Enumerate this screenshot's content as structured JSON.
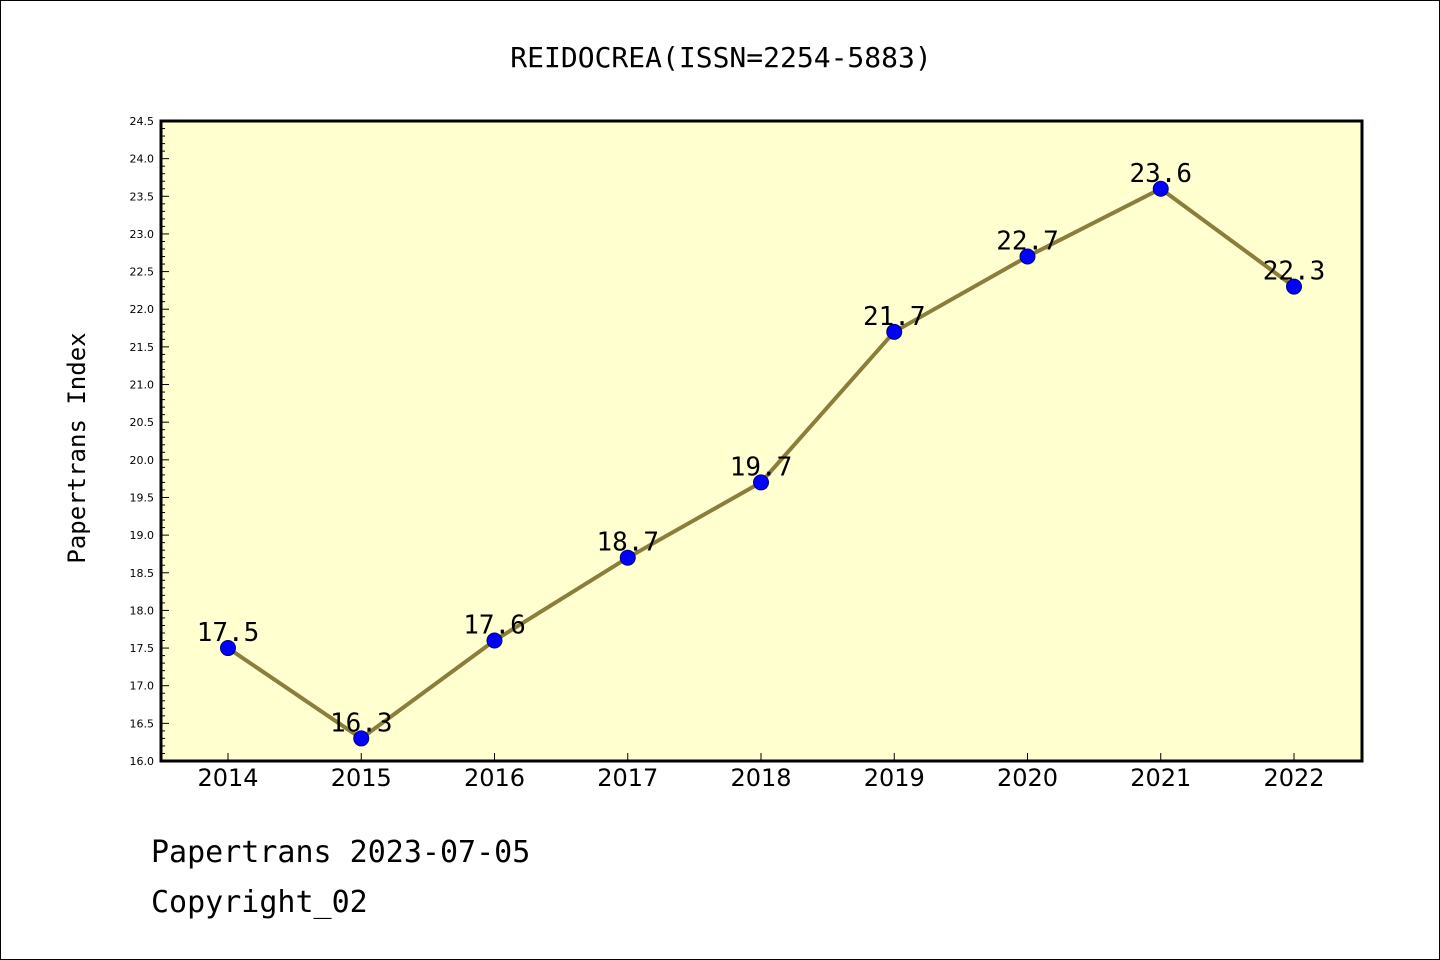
{
  "chart_data": {
    "type": "line",
    "title": "REIDOCREA(ISSN=2254-5883)",
    "xlabel": "",
    "ylabel": "Papertrans Index",
    "categories": [
      "2014",
      "2015",
      "2016",
      "2017",
      "2018",
      "2019",
      "2020",
      "2021",
      "2022"
    ],
    "series": [
      {
        "values": [
          17.5,
          16.3,
          17.6,
          18.7,
          19.7,
          21.7,
          22.7,
          23.6,
          22.3
        ]
      }
    ],
    "data_labels": [
      "17.5",
      "16.3",
      "17.6",
      "18.7",
      "19.7",
      "21.7",
      "22.7",
      "23.6",
      "22.3"
    ],
    "ylim": [
      16.0,
      24.5
    ],
    "y_ticks": [
      "16.0",
      "16.5",
      "17.0",
      "17.5",
      "18.0",
      "18.5",
      "19.0",
      "19.5",
      "20.0",
      "20.5",
      "21.0",
      "21.5",
      "22.0",
      "22.5",
      "23.0",
      "23.5",
      "24.0",
      "24.5"
    ],
    "grid": false,
    "legend": "none",
    "colors": {
      "plot_background": "#ffffd0",
      "line": "#8b7d3a",
      "marker_fill": "#0000ff",
      "marker_edge": "#000080"
    }
  },
  "footer": {
    "line1": "Papertrans 2023-07-05",
    "line2": "Copyright_02"
  }
}
